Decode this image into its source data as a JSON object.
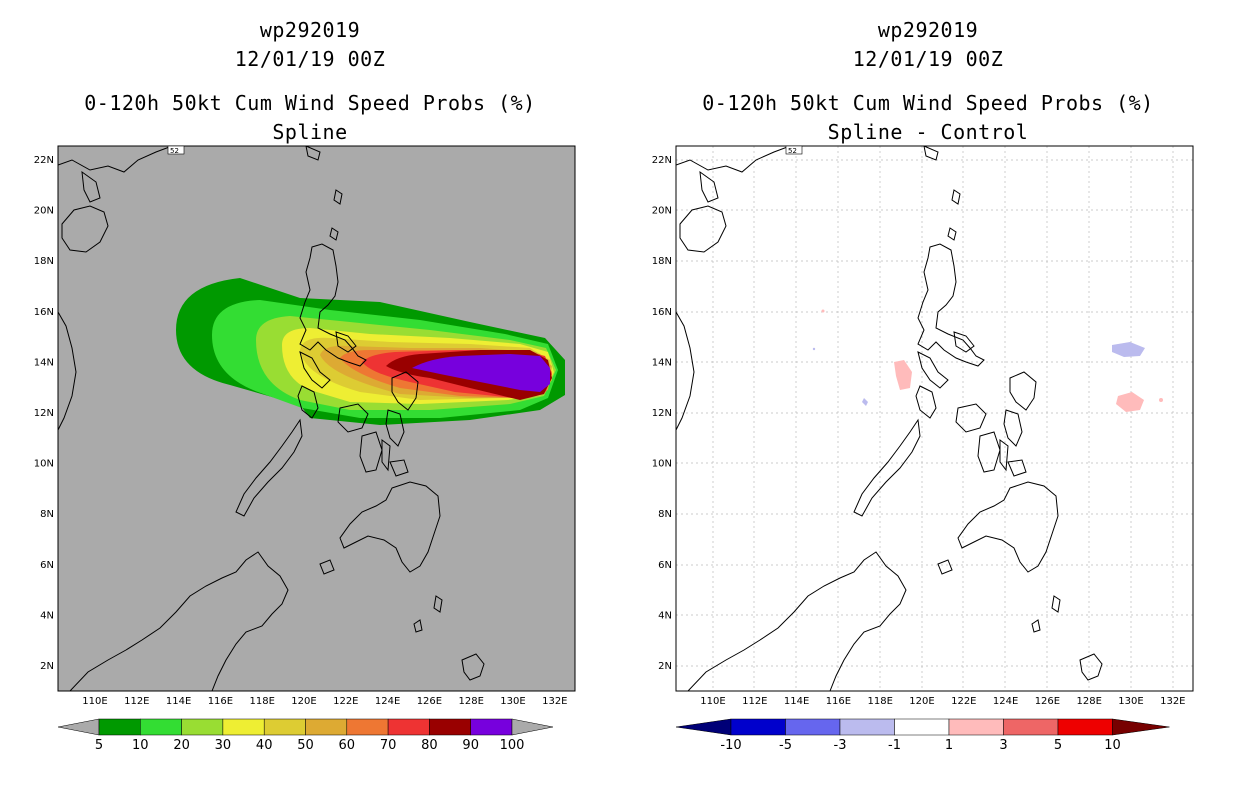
{
  "left_panel": {
    "title_lines": [
      "wp292019",
      "12/01/19 00Z",
      "0-120h 50kt Cum Wind Speed Probs (%)",
      "Spline"
    ],
    "background_color": "#aaaaaa",
    "colorbar": {
      "labels": [
        "5",
        "10",
        "20",
        "30",
        "40",
        "50",
        "60",
        "70",
        "80",
        "90",
        "100"
      ],
      "colors": [
        "#009900",
        "#33dd33",
        "#99dd33",
        "#eeee33",
        "#ddcc33",
        "#ddaa33",
        "#ee7733",
        "#ee3333",
        "#990000",
        "#7700dd"
      ],
      "end_color": "#aaaaaa"
    }
  },
  "right_panel": {
    "title_lines": [
      "wp292019",
      "12/01/19 00Z",
      "0-120h 50kt Cum Wind Speed Probs (%)",
      "Spline - Control"
    ],
    "background_color": "#ffffff",
    "colorbar": {
      "labels": [
        "-10",
        "-5",
        "-3",
        "-1",
        "1",
        "3",
        "5",
        "10"
      ],
      "colors": [
        "#0000cc",
        "#6666ee",
        "#bbbbee",
        "#ffffff",
        "#ffbbbb",
        "#ee6666",
        "#ee0000"
      ],
      "left_end_color": "#000077",
      "right_end_color": "#770000"
    }
  },
  "map_axes": {
    "x_ticks": [
      "110E",
      "112E",
      "114E",
      "116E",
      "118E",
      "120E",
      "122E",
      "124E",
      "126E",
      "128E",
      "130E",
      "132E"
    ],
    "y_ticks": [
      "22N",
      "20N",
      "18N",
      "16N",
      "14N",
      "12N",
      "10N",
      "8N",
      "6N",
      "4N",
      "2N"
    ],
    "region_badge": "52"
  }
}
